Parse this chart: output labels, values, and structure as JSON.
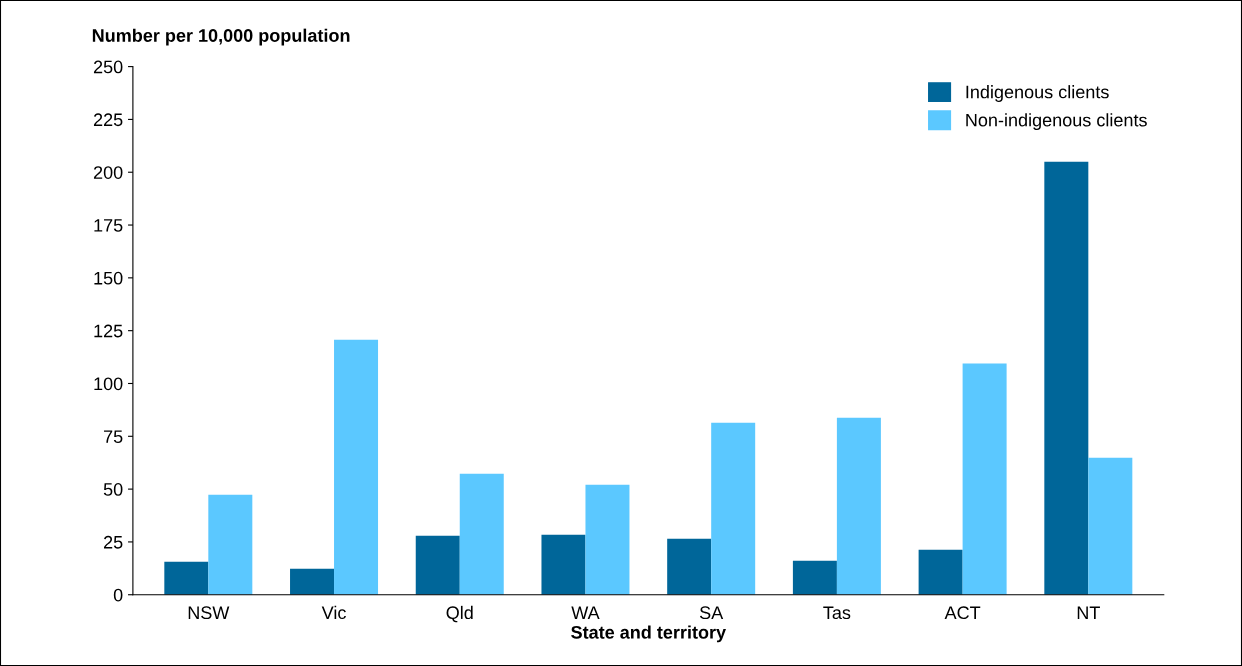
{
  "chart_data": {
    "type": "bar",
    "ylabel": "Number per 10,000 population",
    "xlabel": "State and territory",
    "categories": [
      "NSW",
      "Vic",
      "Qld",
      "WA",
      "SA",
      "Tas",
      "ACT",
      "NT"
    ],
    "series": [
      {
        "name": "Indigenous clients",
        "color": "#006699",
        "values": [
          15.6,
          12.3,
          27.9,
          28.4,
          26.5,
          16.1,
          21.3,
          205
        ]
      },
      {
        "name": "Non-indigenous clients",
        "color": "#5bc8ff",
        "values": [
          47.3,
          120.7,
          57.3,
          52.1,
          81.4,
          83.8,
          109.4,
          64.9
        ]
      }
    ],
    "ylim": [
      0,
      250
    ],
    "yticks": [
      0,
      25,
      50,
      75,
      100,
      125,
      150,
      175,
      200,
      225,
      250
    ],
    "grid": false,
    "legend": "top right"
  }
}
